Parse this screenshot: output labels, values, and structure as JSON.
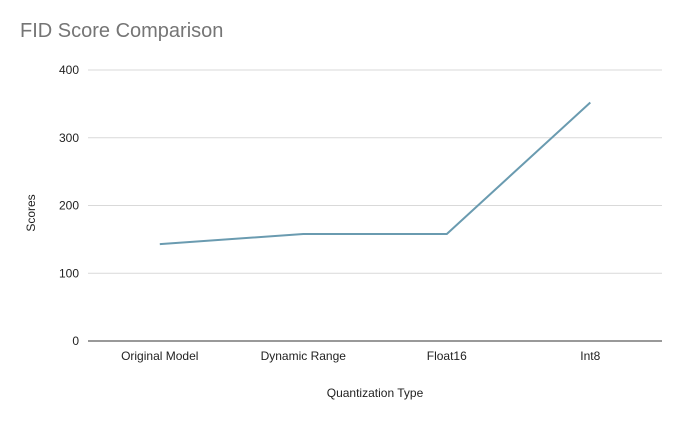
{
  "chart_data": {
    "type": "line",
    "title": "FID Score Comparison",
    "xlabel": "Quantization Type",
    "ylabel": "Scores",
    "categories": [
      "Original Model",
      "Dynamic Range",
      "Float16",
      "Int8"
    ],
    "series": [
      {
        "values": [
          143,
          158,
          158,
          352
        ],
        "color": "#6a9bb0"
      }
    ],
    "ylim": [
      0,
      400
    ],
    "yticks": [
      0,
      100,
      200,
      300,
      400
    ],
    "grid": true,
    "legend": "none",
    "colors": {
      "gridline": "#d9d9d9",
      "axis": "#333333",
      "title": "#757575"
    }
  }
}
